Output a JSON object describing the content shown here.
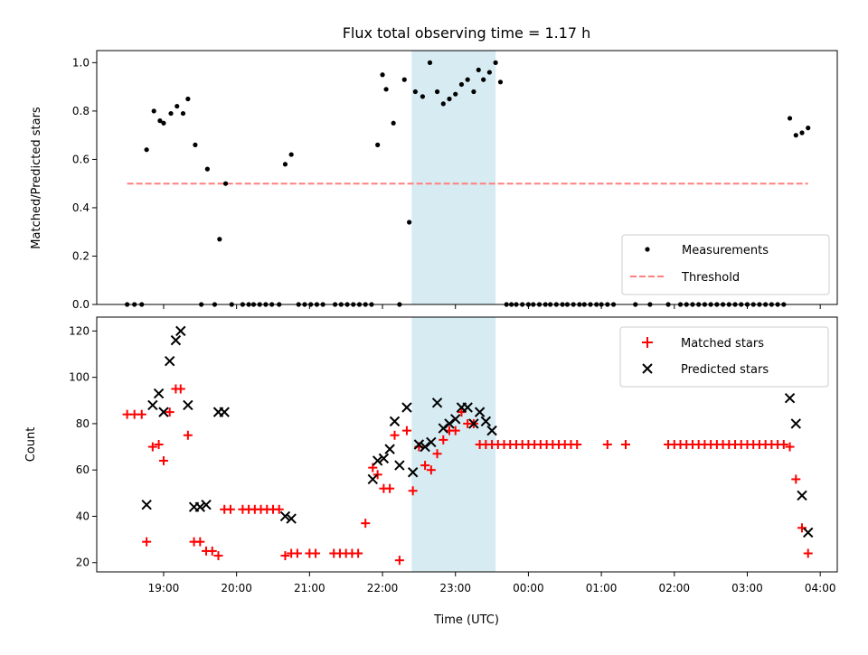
{
  "chart_data": [
    {
      "type": "scatter",
      "title": "Flux total observing time = 1.17 h",
      "ylabel": "Matched/Predicted stars",
      "xlim": [
        "18:05",
        "04:14"
      ],
      "ylim": [
        0,
        1.05
      ],
      "yticks": [
        "0.0",
        "0.2",
        "0.4",
        "0.6",
        "0.8",
        "1.0"
      ],
      "legend_position": "lower-right",
      "shaded_interval": [
        "22:24",
        "23:33"
      ],
      "threshold": {
        "value": 0.5,
        "x_range": [
          "18:30",
          "03:50"
        ]
      },
      "series": [
        {
          "name": "Measurements",
          "color": "#000000",
          "points": [
            [
              "18:30",
              0
            ],
            [
              "18:36",
              0
            ],
            [
              "18:42",
              0
            ],
            [
              "18:46",
              0.64
            ],
            [
              "18:52",
              0.8
            ],
            [
              "18:57",
              0.76
            ],
            [
              "19:00",
              0.75
            ],
            [
              "19:06",
              0.79
            ],
            [
              "19:11",
              0.82
            ],
            [
              "19:16",
              0.79
            ],
            [
              "19:20",
              0.85
            ],
            [
              "19:26",
              0.66
            ],
            [
              "19:31",
              0
            ],
            [
              "19:36",
              0.56
            ],
            [
              "19:42",
              0
            ],
            [
              "19:46",
              0.27
            ],
            [
              "19:51",
              0.5
            ],
            [
              "19:56",
              0
            ],
            [
              "20:05",
              0
            ],
            [
              "20:10",
              0
            ],
            [
              "20:14",
              0
            ],
            [
              "20:19",
              0
            ],
            [
              "20:24",
              0
            ],
            [
              "20:29",
              0
            ],
            [
              "20:35",
              0
            ],
            [
              "20:40",
              0.58
            ],
            [
              "20:45",
              0.62
            ],
            [
              "20:51",
              0
            ],
            [
              "20:56",
              0
            ],
            [
              "21:01",
              0
            ],
            [
              "21:06",
              0
            ],
            [
              "21:11",
              0
            ],
            [
              "21:21",
              0
            ],
            [
              "21:26",
              0
            ],
            [
              "21:31",
              0
            ],
            [
              "21:36",
              0
            ],
            [
              "21:41",
              0
            ],
            [
              "21:46",
              0
            ],
            [
              "21:51",
              0
            ],
            [
              "21:56",
              0.66
            ],
            [
              "22:00",
              0.95
            ],
            [
              "22:03",
              0.89
            ],
            [
              "22:09",
              0.75
            ],
            [
              "22:14",
              0
            ],
            [
              "22:18",
              0.93
            ],
            [
              "22:22",
              0.34
            ],
            [
              "22:27",
              0.88
            ],
            [
              "22:33",
              0.86
            ],
            [
              "22:39",
              1.0
            ],
            [
              "22:45",
              0.88
            ],
            [
              "22:50",
              0.83
            ],
            [
              "22:55",
              0.85
            ],
            [
              "23:00",
              0.87
            ],
            [
              "23:05",
              0.91
            ],
            [
              "23:10",
              0.93
            ],
            [
              "23:15",
              0.88
            ],
            [
              "23:19",
              0.97
            ],
            [
              "23:23",
              0.93
            ],
            [
              "23:28",
              0.96
            ],
            [
              "23:33",
              1.0
            ],
            [
              "23:37",
              0.92
            ],
            [
              "23:42",
              0
            ],
            [
              "23:46",
              0
            ],
            [
              "23:50",
              0
            ],
            [
              "23:55",
              0
            ],
            [
              "00:00",
              0
            ],
            [
              "00:04",
              0
            ],
            [
              "00:09",
              0
            ],
            [
              "00:14",
              0
            ],
            [
              "00:18",
              0
            ],
            [
              "00:23",
              0
            ],
            [
              "00:28",
              0
            ],
            [
              "00:32",
              0
            ],
            [
              "00:37",
              0
            ],
            [
              "00:42",
              0
            ],
            [
              "00:46",
              0
            ],
            [
              "00:51",
              0
            ],
            [
              "00:56",
              0
            ],
            [
              "01:00",
              0
            ],
            [
              "01:05",
              0
            ],
            [
              "01:10",
              0
            ],
            [
              "01:28",
              0
            ],
            [
              "01:40",
              0
            ],
            [
              "01:55",
              0
            ],
            [
              "02:05",
              0
            ],
            [
              "02:10",
              0
            ],
            [
              "02:15",
              0
            ],
            [
              "02:20",
              0
            ],
            [
              "02:25",
              0
            ],
            [
              "02:30",
              0
            ],
            [
              "02:35",
              0
            ],
            [
              "02:40",
              0
            ],
            [
              "02:45",
              0
            ],
            [
              "02:50",
              0
            ],
            [
              "02:55",
              0
            ],
            [
              "03:00",
              0
            ],
            [
              "03:05",
              0
            ],
            [
              "03:10",
              0
            ],
            [
              "03:15",
              0
            ],
            [
              "03:20",
              0
            ],
            [
              "03:25",
              0
            ],
            [
              "03:30",
              0
            ],
            [
              "03:35",
              0.77
            ],
            [
              "03:40",
              0.7
            ],
            [
              "03:45",
              0.71
            ],
            [
              "03:50",
              0.73
            ]
          ]
        },
        {
          "name": "Threshold",
          "color": "#ff7f7f",
          "style": "dashed"
        }
      ]
    },
    {
      "type": "scatter",
      "xlabel": "Time (UTC)",
      "ylabel": "Count",
      "xlim": [
        "18:05",
        "04:14"
      ],
      "ylim": [
        16,
        126
      ],
      "yticks": [
        "20",
        "40",
        "60",
        "80",
        "100",
        "120"
      ],
      "xticks": [
        "19:00",
        "20:00",
        "21:00",
        "22:00",
        "23:00",
        "00:00",
        "01:00",
        "02:00",
        "03:00",
        "04:00"
      ],
      "legend_position": "upper-right",
      "shaded_interval": [
        "22:24",
        "23:33"
      ],
      "series": [
        {
          "name": "Matched stars",
          "color": "#ff0000",
          "marker": "plus",
          "points": [
            [
              "18:30",
              84
            ],
            [
              "18:36",
              84
            ],
            [
              "18:42",
              84
            ],
            [
              "18:46",
              29
            ],
            [
              "18:51",
              70
            ],
            [
              "18:56",
              71
            ],
            [
              "19:00",
              64
            ],
            [
              "19:05",
              85
            ],
            [
              "19:10",
              95
            ],
            [
              "19:14",
              95
            ],
            [
              "19:20",
              75
            ],
            [
              "19:25",
              29
            ],
            [
              "19:30",
              29
            ],
            [
              "19:35",
              25
            ],
            [
              "19:40",
              25
            ],
            [
              "19:45",
              23
            ],
            [
              "19:50",
              43
            ],
            [
              "19:55",
              43
            ],
            [
              "20:05",
              43
            ],
            [
              "20:10",
              43
            ],
            [
              "20:15",
              43
            ],
            [
              "20:20",
              43
            ],
            [
              "20:25",
              43
            ],
            [
              "20:30",
              43
            ],
            [
              "20:35",
              43
            ],
            [
              "20:40",
              23
            ],
            [
              "20:45",
              24
            ],
            [
              "20:50",
              24
            ],
            [
              "21:00",
              24
            ],
            [
              "21:05",
              24
            ],
            [
              "21:20",
              24
            ],
            [
              "21:25",
              24
            ],
            [
              "21:30",
              24
            ],
            [
              "21:35",
              24
            ],
            [
              "21:40",
              24
            ],
            [
              "21:46",
              37
            ],
            [
              "21:52",
              61
            ],
            [
              "21:56",
              58
            ],
            [
              "22:01",
              52
            ],
            [
              "22:06",
              52
            ],
            [
              "22:10",
              75
            ],
            [
              "22:14",
              21
            ],
            [
              "22:20",
              77
            ],
            [
              "22:25",
              51
            ],
            [
              "22:30",
              70
            ],
            [
              "22:35",
              62
            ],
            [
              "22:40",
              60
            ],
            [
              "22:45",
              67
            ],
            [
              "22:50",
              73
            ],
            [
              "22:55",
              77
            ],
            [
              "23:00",
              77
            ],
            [
              "23:05",
              85
            ],
            [
              "23:10",
              80
            ],
            [
              "23:15",
              80
            ],
            [
              "23:20",
              71
            ],
            [
              "23:25",
              71
            ],
            [
              "23:30",
              71
            ],
            [
              "23:35",
              71
            ],
            [
              "23:40",
              71
            ],
            [
              "23:45",
              71
            ],
            [
              "23:50",
              71
            ],
            [
              "23:55",
              71
            ],
            [
              "00:00",
              71
            ],
            [
              "00:05",
              71
            ],
            [
              "00:10",
              71
            ],
            [
              "00:15",
              71
            ],
            [
              "00:20",
              71
            ],
            [
              "00:25",
              71
            ],
            [
              "00:30",
              71
            ],
            [
              "00:35",
              71
            ],
            [
              "00:40",
              71
            ],
            [
              "01:05",
              71
            ],
            [
              "01:20",
              71
            ],
            [
              "01:55",
              71
            ],
            [
              "02:00",
              71
            ],
            [
              "02:05",
              71
            ],
            [
              "02:10",
              71
            ],
            [
              "02:15",
              71
            ],
            [
              "02:20",
              71
            ],
            [
              "02:25",
              71
            ],
            [
              "02:30",
              71
            ],
            [
              "02:35",
              71
            ],
            [
              "02:40",
              71
            ],
            [
              "02:45",
              71
            ],
            [
              "02:50",
              71
            ],
            [
              "02:55",
              71
            ],
            [
              "03:00",
              71
            ],
            [
              "03:05",
              71
            ],
            [
              "03:10",
              71
            ],
            [
              "03:15",
              71
            ],
            [
              "03:20",
              71
            ],
            [
              "03:25",
              71
            ],
            [
              "03:30",
              71
            ],
            [
              "03:35",
              70
            ],
            [
              "03:40",
              56
            ],
            [
              "03:45",
              35
            ],
            [
              "03:50",
              24
            ]
          ]
        },
        {
          "name": "Predicted stars",
          "color": "#000000",
          "marker": "x",
          "points": [
            [
              "18:46",
              45
            ],
            [
              "18:51",
              88
            ],
            [
              "18:56",
              93
            ],
            [
              "19:00",
              85
            ],
            [
              "19:05",
              107
            ],
            [
              "19:10",
              116
            ],
            [
              "19:14",
              120
            ],
            [
              "19:20",
              88
            ],
            [
              "19:25",
              44
            ],
            [
              "19:30",
              44
            ],
            [
              "19:35",
              45
            ],
            [
              "19:45",
              85
            ],
            [
              "19:50",
              85
            ],
            [
              "20:40",
              40
            ],
            [
              "20:45",
              39
            ],
            [
              "21:52",
              56
            ],
            [
              "21:56",
              64
            ],
            [
              "22:01",
              65
            ],
            [
              "22:06",
              69
            ],
            [
              "22:10",
              81
            ],
            [
              "22:14",
              62
            ],
            [
              "22:20",
              87
            ],
            [
              "22:25",
              59
            ],
            [
              "22:30",
              71
            ],
            [
              "22:35",
              70
            ],
            [
              "22:40",
              72
            ],
            [
              "22:45",
              89
            ],
            [
              "22:50",
              78
            ],
            [
              "22:55",
              80
            ],
            [
              "23:00",
              82
            ],
            [
              "23:05",
              87
            ],
            [
              "23:10",
              87
            ],
            [
              "23:15",
              80
            ],
            [
              "23:20",
              85
            ],
            [
              "23:25",
              81
            ],
            [
              "23:30",
              77
            ],
            [
              "03:35",
              91
            ],
            [
              "03:40",
              80
            ],
            [
              "03:45",
              49
            ],
            [
              "03:50",
              33
            ]
          ]
        }
      ]
    }
  ]
}
